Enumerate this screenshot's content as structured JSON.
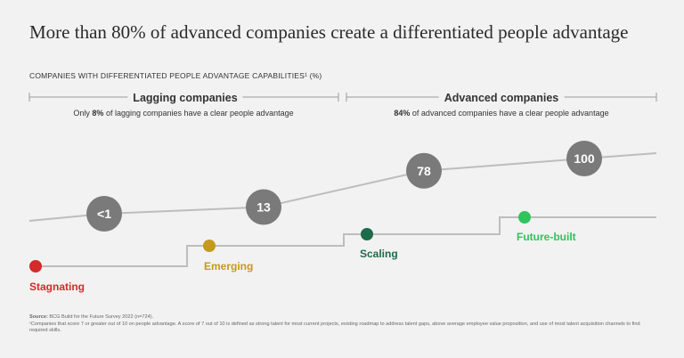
{
  "title": "More than 80% of advanced companies create a differentiated people advantage",
  "subtitle": "COMPANIES WITH DIFFERENTIATED PEOPLE ADVANTAGE CAPABILITIES¹ (%)",
  "groups": {
    "lagging": {
      "label": "Lagging companies",
      "note_pre": "Only ",
      "note_value": "8%",
      "note_post": " of lagging companies have a clear people advantage"
    },
    "advanced": {
      "label": "Advanced companies",
      "note_pre": "",
      "note_value": "84%",
      "note_post": " of advanced companies have a clear people advantage"
    }
  },
  "colors": {
    "bubble": "#7a7a7a",
    "line": "#bdbdbd",
    "stagnating": "#d42a2a",
    "emerging": "#c49a1c",
    "scaling": "#1d6b4a",
    "future_built": "#2fc45c"
  },
  "chart_data": {
    "type": "line",
    "categories": [
      "Stagnating",
      "Emerging",
      "Scaling",
      "Future-built"
    ],
    "values_display": [
      "<1",
      "13",
      "78",
      "100"
    ],
    "values": [
      1,
      13,
      78,
      100
    ],
    "ylabel": "%"
  },
  "footnote": {
    "source_label": "Source:",
    "source_text": " BCG Build for the Future Survey 2022 (n=724).",
    "note": "¹Companies that score 7 or greater out of 10 on people advantage. A score of 7 out of 10 is defined as strong talent for most current projects, existing roadmap to address talent gaps, above average employee value proposition, and use of most talent acquisition channels to find required skills."
  }
}
